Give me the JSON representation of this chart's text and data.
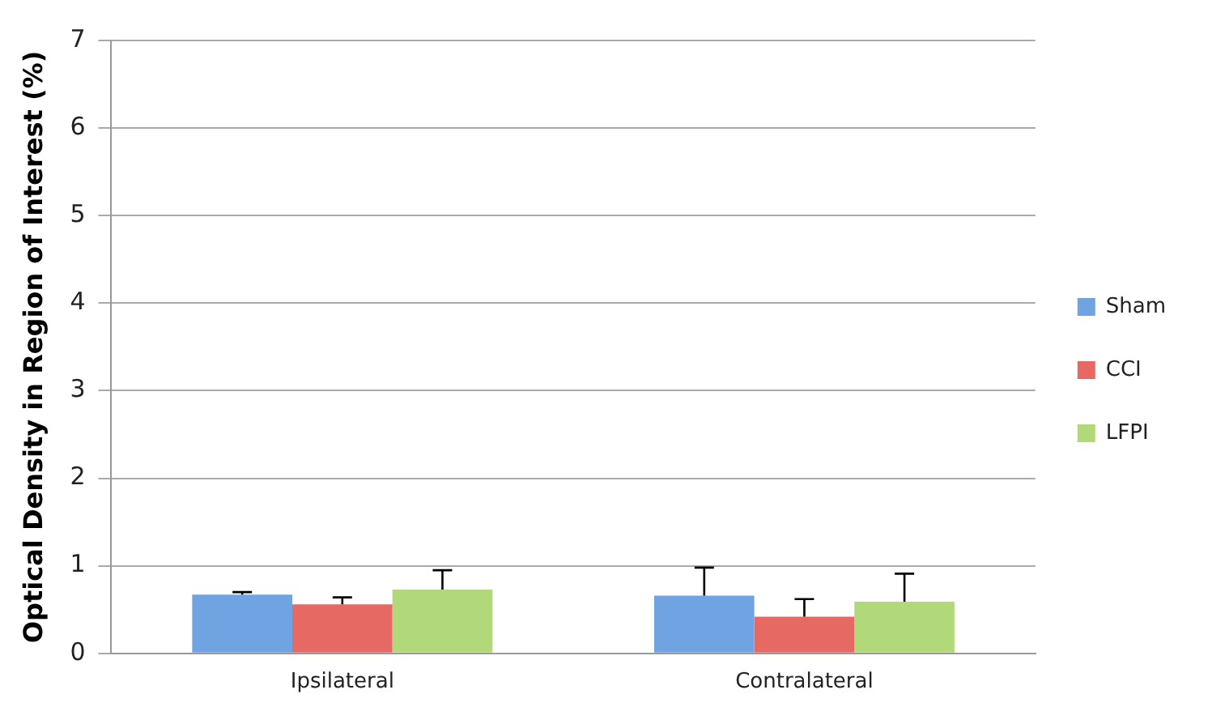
{
  "chart_data": {
    "type": "bar",
    "ylabel": "Optical Density in Region of Interest (%)",
    "categories": [
      "Ipsilateral",
      "Contralateral"
    ],
    "series": [
      {
        "name": "Sham",
        "color": "#6fa3e2",
        "values": [
          0.67,
          0.66
        ],
        "errors": [
          [
            0.67,
            0.7
          ],
          [
            0.66,
            0.98
          ]
        ]
      },
      {
        "name": "CCI",
        "color": "#e66a63",
        "values": [
          0.56,
          0.42
        ],
        "errors": [
          [
            0.56,
            0.64
          ],
          [
            0.42,
            0.62
          ]
        ]
      },
      {
        "name": "LFPI",
        "color": "#b2d979",
        "values": [
          0.73,
          0.59
        ],
        "errors": [
          [
            0.73,
            0.95
          ],
          [
            0.59,
            0.91
          ]
        ]
      }
    ],
    "ylim": [
      0,
      7
    ],
    "yticks": [
      0,
      1,
      2,
      3,
      4,
      5,
      6,
      7
    ],
    "grid": "y",
    "legend": "right"
  }
}
